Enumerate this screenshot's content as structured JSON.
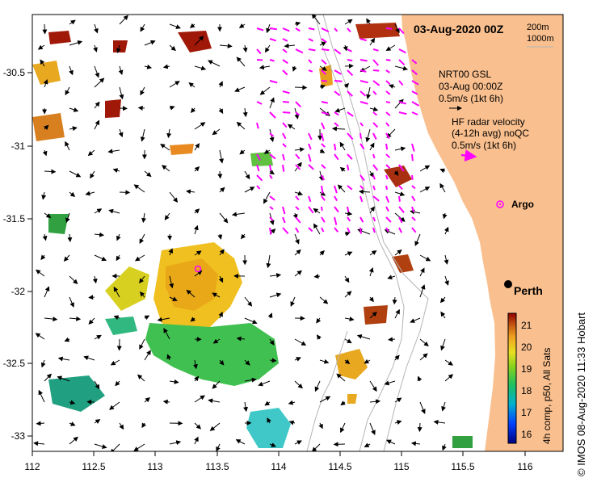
{
  "header": {
    "date": "03-Aug-2020 00Z"
  },
  "depth_legend": {
    "line1": "200m",
    "line2": "1000m"
  },
  "legend_gsl": {
    "line1": "NRT00 GSL",
    "line2": "03-Aug 00:00Z",
    "line3": "0.5m/s (1kt 6h)"
  },
  "legend_hf": {
    "line1": "HF radar velocity",
    "line2": "(4-12h avg) noQC",
    "line3": "0.5m/s (1kt 6h)"
  },
  "places": {
    "argo": "Argo",
    "perth": "Perth"
  },
  "axes": {
    "x_ticks": [
      "112",
      "112.5",
      "113",
      "113.5",
      "114",
      "114.5",
      "115",
      "115.5",
      "116"
    ],
    "y_ticks": [
      "-30.5",
      "-31",
      "-31.5",
      "-32",
      "-32.5",
      "-33"
    ]
  },
  "colorbar": {
    "label": "4h comp, p50, All Sats",
    "ticks": [
      "21",
      "20",
      "19",
      "18",
      "17",
      "16"
    ],
    "min": 15.5,
    "max": 21.5
  },
  "side_title": "© IMOS 08-Aug-2020 11:33 Hobart",
  "colors": {
    "land": "#f9bf8e",
    "vector_gsl": "#000000",
    "vector_hf": "#ff00ff",
    "isobath": "#b4b4b4",
    "frame": "#000000"
  },
  "icons": {
    "argo": "argo-float-marker",
    "perth": "city-marker"
  }
}
